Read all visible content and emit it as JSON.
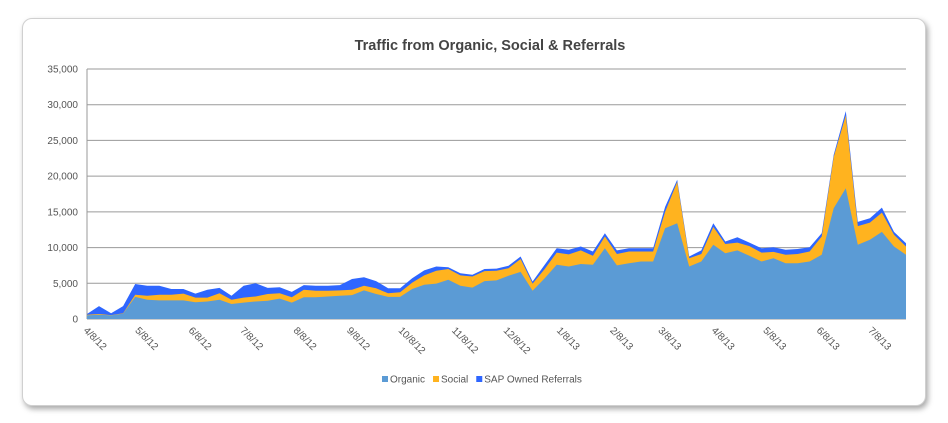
{
  "chart_data": {
    "type": "area",
    "stacked": true,
    "title": "Traffic from Organic, Social & Referrals",
    "xlabel": "",
    "ylabel": "",
    "ylim": [
      0,
      35000
    ],
    "yticks": [
      "0",
      "5,000",
      "10,000",
      "15,000",
      "20,000",
      "25,000",
      "30,000",
      "35,000"
    ],
    "ytick_values": [
      0,
      5000,
      10000,
      15000,
      20000,
      25000,
      30000,
      35000
    ],
    "xticks": [
      "4/8/12",
      "5/8/12",
      "6/8/12",
      "7/8/12",
      "8/8/12",
      "9/8/12",
      "10/8/12",
      "11/8/12",
      "12/8/12",
      "1/8/13",
      "2/8/13",
      "3/8/13",
      "4/8/13",
      "5/8/13",
      "6/8/13",
      "7/8/13"
    ],
    "grid": "horizontal",
    "legend_position": "bottom",
    "x": [
      "4/8/12",
      "4/15/12",
      "4/22/12",
      "4/29/12",
      "5/6/12",
      "5/13/12",
      "5/20/12",
      "5/27/12",
      "6/3/12",
      "6/10/12",
      "6/17/12",
      "6/24/12",
      "7/1/12",
      "7/8/12",
      "7/15/12",
      "7/22/12",
      "7/29/12",
      "8/5/12",
      "8/12/12",
      "8/19/12",
      "8/26/12",
      "9/2/12",
      "9/9/12",
      "9/16/12",
      "9/23/12",
      "9/30/12",
      "10/7/12",
      "10/14/12",
      "10/21/12",
      "10/28/12",
      "11/4/12",
      "11/11/12",
      "11/18/12",
      "11/25/12",
      "12/2/12",
      "12/9/12",
      "12/16/12",
      "12/23/12",
      "12/30/12",
      "1/6/13",
      "1/13/13",
      "1/20/13",
      "1/27/13",
      "2/3/13",
      "2/10/13",
      "2/17/13",
      "2/24/13",
      "3/3/13",
      "3/10/13",
      "3/17/13",
      "3/24/13",
      "3/31/13",
      "4/7/13",
      "4/14/13",
      "4/21/13",
      "4/28/13",
      "5/5/13",
      "5/12/13",
      "5/19/13",
      "5/26/13",
      "6/2/13",
      "6/9/13",
      "6/16/13",
      "6/23/13",
      "6/30/13",
      "7/7/13",
      "7/14/13",
      "7/21/13",
      "7/28/13"
    ],
    "series": [
      {
        "name": "Organic",
        "color": "#5B9BD5",
        "values": [
          500,
          600,
          500,
          750,
          3100,
          2700,
          2600,
          2600,
          2600,
          2350,
          2450,
          2700,
          2100,
          2300,
          2450,
          2550,
          2850,
          2300,
          3050,
          3050,
          3150,
          3250,
          3350,
          4000,
          3500,
          3100,
          3100,
          4200,
          4800,
          4950,
          5500,
          4650,
          4400,
          5300,
          5400,
          6050,
          6600,
          3950,
          5700,
          7600,
          7350,
          7700,
          7600,
          9900,
          7500,
          7800,
          8050,
          8050,
          12700,
          13400,
          7350,
          8050,
          10400,
          9200,
          9600,
          8850,
          8050,
          8500,
          7800,
          7800,
          8050,
          9000,
          15500,
          18300,
          10400,
          11100,
          12200,
          10150,
          9000
        ]
      },
      {
        "name": "Social",
        "color": "#FFB31F",
        "values": [
          100,
          100,
          50,
          50,
          300,
          550,
          800,
          800,
          950,
          650,
          550,
          900,
          600,
          700,
          700,
          950,
          750,
          750,
          1050,
          900,
          800,
          750,
          750,
          650,
          800,
          500,
          650,
          900,
          1300,
          1800,
          1500,
          1450,
          1550,
          1400,
          1350,
          1050,
          1800,
          1000,
          1300,
          1700,
          1700,
          1900,
          1250,
          1650,
          1600,
          1650,
          1400,
          1400,
          2300,
          5800,
          1150,
          1050,
          2500,
          1300,
          1100,
          1350,
          1250,
          900,
          1200,
          1300,
          1400,
          2550,
          7200,
          10200,
          2600,
          2400,
          2700,
          1650,
          1150
        ]
      },
      {
        "name": "SAP Owned Referrals",
        "color": "#2E66FF",
        "values": [
          100,
          1100,
          250,
          1000,
          1500,
          1400,
          1250,
          800,
          650,
          550,
          1100,
          750,
          550,
          1650,
          1850,
          850,
          850,
          750,
          650,
          700,
          700,
          750,
          1500,
          1200,
          1000,
          700,
          550,
          600,
          700,
          600,
          250,
          300,
          250,
          300,
          300,
          350,
          350,
          300,
          600,
          600,
          650,
          550,
          600,
          450,
          500,
          450,
          450,
          450,
          700,
          300,
          250,
          500,
          500,
          350,
          750,
          500,
          600,
          650,
          700,
          700,
          600,
          450,
          300,
          600,
          600,
          600,
          700,
          400,
          450
        ]
      }
    ]
  }
}
